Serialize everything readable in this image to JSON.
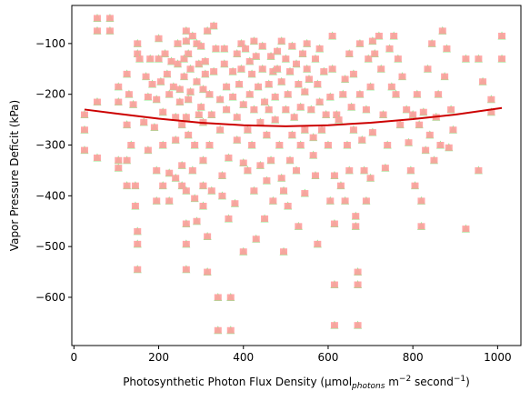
{
  "chart_data": {
    "type": "scatter",
    "title": "",
    "xlabel_parts": {
      "pre": "Photosynthetic Photon Flux Density (µmol",
      "sub": "photons",
      "mid": " m",
      "sup1": "−2",
      "post": " second",
      "sup2": "−1",
      "end": ")"
    },
    "ylabel": "Vapor Pressure Deficit (kPa)",
    "xlim": [
      -5,
      1055
    ],
    "ylim": [
      -695,
      -25
    ],
    "xticks": [
      0,
      200,
      400,
      600,
      800,
      1000
    ],
    "yticks": [
      -600,
      -500,
      -400,
      -300,
      -200,
      -100
    ],
    "xtick_labels": [
      "0",
      "200",
      "400",
      "600",
      "800",
      "1000"
    ],
    "ytick_labels": [
      "−600",
      "−500",
      "−400",
      "−300",
      "−200",
      "−100"
    ],
    "colors": {
      "triangle": "#90ee90",
      "square": "#ff9e9e",
      "fit": "#cc0000"
    },
    "fit": {
      "x": [
        25,
        100,
        200,
        300,
        400,
        500,
        600,
        700,
        800,
        900,
        1010
      ],
      "y": [
        -230,
        -238,
        -248,
        -256,
        -261,
        -263,
        -261,
        -256,
        -249,
        -240,
        -227
      ]
    },
    "points": [
      [
        25,
        -240
      ],
      [
        25,
        -270
      ],
      [
        25,
        -310
      ],
      [
        55,
        -50
      ],
      [
        55,
        -75
      ],
      [
        55,
        -215
      ],
      [
        55,
        -325
      ],
      [
        85,
        -50
      ],
      [
        85,
        -75
      ],
      [
        105,
        -185
      ],
      [
        105,
        -215
      ],
      [
        105,
        -330
      ],
      [
        105,
        -345
      ],
      [
        125,
        -160
      ],
      [
        130,
        -200
      ],
      [
        125,
        -260
      ],
      [
        135,
        -300
      ],
      [
        125,
        -330
      ],
      [
        125,
        -380
      ],
      [
        140,
        -220
      ],
      [
        145,
        -380
      ],
      [
        145,
        -420
      ],
      [
        150,
        -100
      ],
      [
        150,
        -120
      ],
      [
        155,
        -130
      ],
      [
        150,
        -470
      ],
      [
        150,
        -495
      ],
      [
        150,
        -545
      ],
      [
        165,
        -255
      ],
      [
        170,
        -165
      ],
      [
        175,
        -205
      ],
      [
        175,
        -310
      ],
      [
        180,
        -130
      ],
      [
        185,
        -180
      ],
      [
        190,
        -265
      ],
      [
        195,
        -210
      ],
      [
        195,
        -350
      ],
      [
        195,
        -410
      ],
      [
        200,
        -90
      ],
      [
        200,
        -130
      ],
      [
        205,
        -175
      ],
      [
        210,
        -235
      ],
      [
        210,
        -300
      ],
      [
        210,
        -380
      ],
      [
        215,
        -120
      ],
      [
        220,
        -160
      ],
      [
        225,
        -200
      ],
      [
        225,
        -355
      ],
      [
        225,
        -410
      ],
      [
        230,
        -135
      ],
      [
        235,
        -185
      ],
      [
        240,
        -245
      ],
      [
        240,
        -290
      ],
      [
        240,
        -365
      ],
      [
        245,
        -100
      ],
      [
        245,
        -140
      ],
      [
        250,
        -190
      ],
      [
        250,
        -215
      ],
      [
        255,
        -260
      ],
      [
        255,
        -340
      ],
      [
        255,
        -380
      ],
      [
        260,
        -130
      ],
      [
        260,
        -165
      ],
      [
        265,
        -75
      ],
      [
        265,
        -95
      ],
      [
        265,
        -245
      ],
      [
        265,
        -390
      ],
      [
        265,
        -455
      ],
      [
        265,
        -495
      ],
      [
        265,
        -545
      ],
      [
        270,
        -120
      ],
      [
        270,
        -210
      ],
      [
        270,
        -280
      ],
      [
        275,
        -150
      ],
      [
        275,
        -195
      ],
      [
        280,
        -85
      ],
      [
        280,
        -350
      ],
      [
        285,
        -300
      ],
      [
        285,
        -405
      ],
      [
        290,
        -100
      ],
      [
        290,
        -175
      ],
      [
        290,
        -450
      ],
      [
        295,
        -140
      ],
      [
        295,
        -240
      ],
      [
        300,
        -105
      ],
      [
        300,
        -225
      ],
      [
        305,
        -190
      ],
      [
        305,
        -255
      ],
      [
        305,
        -330
      ],
      [
        305,
        -380
      ],
      [
        305,
        -420
      ],
      [
        310,
        -135
      ],
      [
        310,
        -160
      ],
      [
        315,
        -75
      ],
      [
        315,
        -480
      ],
      [
        315,
        -550
      ],
      [
        320,
        -200
      ],
      [
        320,
        -300
      ],
      [
        325,
        -240
      ],
      [
        325,
        -390
      ],
      [
        330,
        -65
      ],
      [
        330,
        -155
      ],
      [
        335,
        -110
      ],
      [
        340,
        -600
      ],
      [
        340,
        -665
      ],
      [
        345,
        -210
      ],
      [
        345,
        -270
      ],
      [
        350,
        -360
      ],
      [
        350,
        -400
      ],
      [
        355,
        -110
      ],
      [
        355,
        -140
      ],
      [
        360,
        -185
      ],
      [
        360,
        -230
      ],
      [
        365,
        -325
      ],
      [
        365,
        -445
      ],
      [
        370,
        -600
      ],
      [
        370,
        -665
      ],
      [
        375,
        -155
      ],
      [
        375,
        -205
      ],
      [
        380,
        -415
      ],
      [
        385,
        -120
      ],
      [
        385,
        -245
      ],
      [
        385,
        -290
      ],
      [
        390,
        -180
      ],
      [
        395,
        -100
      ],
      [
        395,
        -150
      ],
      [
        400,
        -220
      ],
      [
        400,
        -335
      ],
      [
        400,
        -510
      ],
      [
        405,
        -110
      ],
      [
        410,
        -270
      ],
      [
        410,
        -350
      ],
      [
        415,
        -135
      ],
      [
        415,
        -200
      ],
      [
        420,
        -160
      ],
      [
        420,
        -300
      ],
      [
        425,
        -95
      ],
      [
        425,
        -230
      ],
      [
        425,
        -390
      ],
      [
        430,
        -125
      ],
      [
        430,
        -485
      ],
      [
        435,
        -185
      ],
      [
        440,
        -255
      ],
      [
        440,
        -340
      ],
      [
        445,
        -105
      ],
      [
        445,
        -150
      ],
      [
        450,
        -215
      ],
      [
        450,
        -445
      ],
      [
        455,
        -280
      ],
      [
        455,
        -370
      ],
      [
        460,
        -180
      ],
      [
        460,
        -230
      ],
      [
        465,
        -125
      ],
      [
        465,
        -330
      ],
      [
        470,
        -155
      ],
      [
        470,
        -410
      ],
      [
        475,
        -205
      ],
      [
        475,
        -250
      ],
      [
        480,
        -115
      ],
      [
        480,
        -150
      ],
      [
        485,
        -300
      ],
      [
        490,
        -95
      ],
      [
        490,
        -175
      ],
      [
        490,
        -365
      ],
      [
        495,
        -390
      ],
      [
        495,
        -510
      ],
      [
        500,
        -130
      ],
      [
        500,
        -230
      ],
      [
        505,
        -200
      ],
      [
        505,
        -420
      ],
      [
        510,
        -155
      ],
      [
        510,
        -330
      ],
      [
        515,
        -105
      ],
      [
        515,
        -280
      ],
      [
        520,
        -245
      ],
      [
        525,
        -140
      ],
      [
        525,
        -350
      ],
      [
        530,
        -180
      ],
      [
        530,
        -460
      ],
      [
        535,
        -225
      ],
      [
        535,
        -300
      ],
      [
        540,
        -120
      ],
      [
        545,
        -195
      ],
      [
        545,
        -270
      ],
      [
        545,
        -395
      ],
      [
        550,
        -100
      ],
      [
        550,
        -150
      ],
      [
        555,
        -170
      ],
      [
        560,
        -230
      ],
      [
        565,
        -285
      ],
      [
        565,
        -320
      ],
      [
        570,
        -130
      ],
      [
        570,
        -360
      ],
      [
        575,
        -180
      ],
      [
        575,
        -495
      ],
      [
        580,
        -110
      ],
      [
        580,
        -215
      ],
      [
        585,
        -270
      ],
      [
        590,
        -155
      ],
      [
        595,
        -240
      ],
      [
        600,
        -300
      ],
      [
        605,
        -205
      ],
      [
        605,
        -410
      ],
      [
        610,
        -85
      ],
      [
        610,
        -150
      ],
      [
        615,
        -360
      ],
      [
        615,
        -455
      ],
      [
        615,
        -575
      ],
      [
        615,
        -655
      ],
      [
        620,
        -240
      ],
      [
        625,
        -250
      ],
      [
        630,
        -380
      ],
      [
        635,
        -200
      ],
      [
        640,
        -170
      ],
      [
        640,
        -410
      ],
      [
        645,
        -300
      ],
      [
        650,
        -120
      ],
      [
        650,
        -350
      ],
      [
        655,
        -225
      ],
      [
        660,
        -160
      ],
      [
        660,
        -270
      ],
      [
        665,
        -440
      ],
      [
        665,
        -460
      ],
      [
        670,
        -550
      ],
      [
        670,
        -575
      ],
      [
        670,
        -655
      ],
      [
        675,
        -100
      ],
      [
        675,
        -200
      ],
      [
        680,
        -290
      ],
      [
        685,
        -350
      ],
      [
        690,
        -230
      ],
      [
        690,
        -410
      ],
      [
        695,
        -130
      ],
      [
        700,
        -185
      ],
      [
        700,
        -365
      ],
      [
        705,
        -95
      ],
      [
        705,
        -275
      ],
      [
        710,
        -120
      ],
      [
        720,
        -85
      ],
      [
        725,
        -150
      ],
      [
        730,
        -240
      ],
      [
        735,
        -345
      ],
      [
        740,
        -300
      ],
      [
        745,
        -110
      ],
      [
        750,
        -185
      ],
      [
        755,
        -85
      ],
      [
        760,
        -200
      ],
      [
        765,
        -130
      ],
      [
        770,
        -260
      ],
      [
        775,
        -165
      ],
      [
        785,
        -230
      ],
      [
        790,
        -295
      ],
      [
        795,
        -350
      ],
      [
        800,
        -240
      ],
      [
        805,
        -380
      ],
      [
        810,
        -200
      ],
      [
        815,
        -260
      ],
      [
        820,
        -410
      ],
      [
        820,
        -460
      ],
      [
        825,
        -235
      ],
      [
        830,
        -310
      ],
      [
        835,
        -150
      ],
      [
        840,
        -280
      ],
      [
        845,
        -100
      ],
      [
        850,
        -330
      ],
      [
        855,
        -245
      ],
      [
        860,
        -200
      ],
      [
        865,
        -300
      ],
      [
        870,
        -75
      ],
      [
        875,
        -165
      ],
      [
        880,
        -110
      ],
      [
        885,
        -305
      ],
      [
        890,
        -230
      ],
      [
        895,
        -270
      ],
      [
        925,
        -130
      ],
      [
        925,
        -465
      ],
      [
        955,
        -130
      ],
      [
        955,
        -350
      ],
      [
        965,
        -175
      ],
      [
        985,
        -210
      ],
      [
        985,
        -235
      ],
      [
        1010,
        -85
      ],
      [
        1010,
        -130
      ]
    ]
  }
}
